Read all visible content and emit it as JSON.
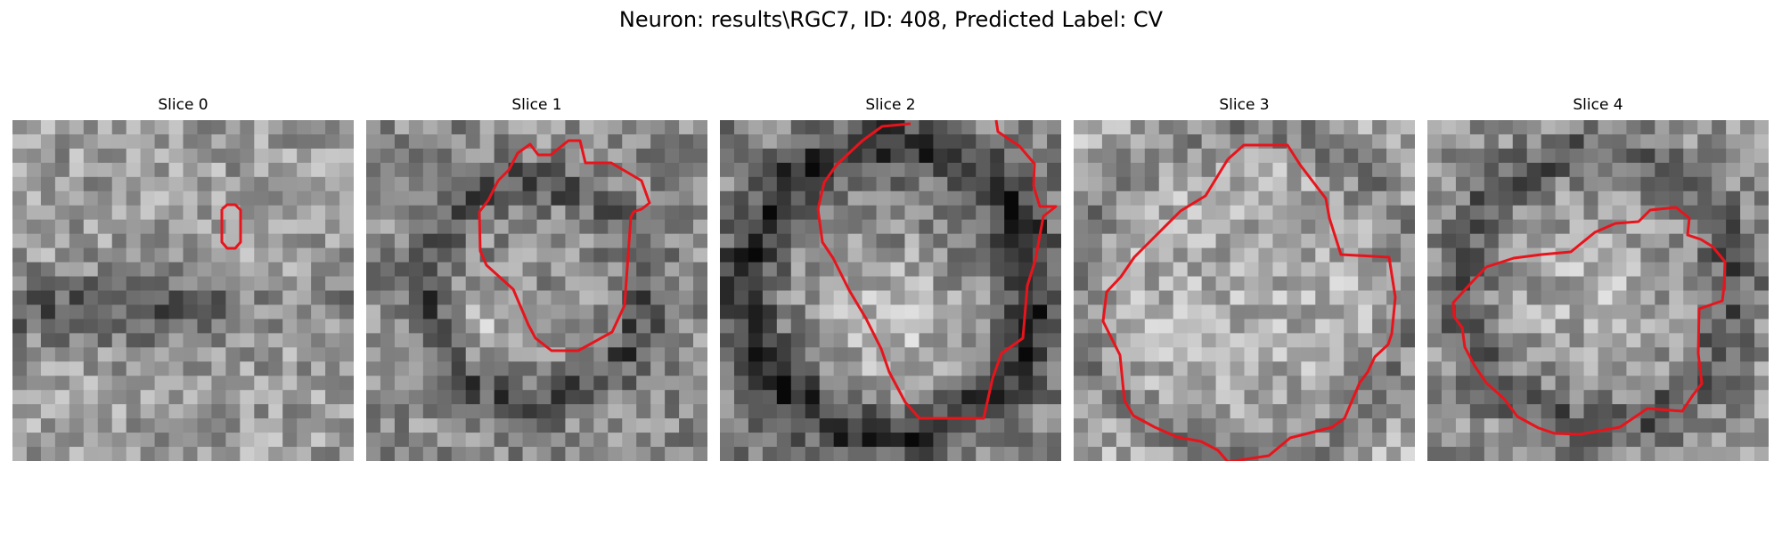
{
  "figure": {
    "title": "Neuron: results\\RGC7, ID: 408, Predicted Label: CV"
  },
  "panels": [
    {
      "title": "Slice 0",
      "pattern": "sparse"
    },
    {
      "title": "Slice 1",
      "pattern": "ring-small"
    },
    {
      "title": "Slice 2",
      "pattern": "ring-large"
    },
    {
      "title": "Slice 3",
      "pattern": "bright"
    },
    {
      "title": "Slice 4",
      "pattern": "ring-soft"
    }
  ],
  "colors": {
    "contour": "#e8141c",
    "background": "#ffffff"
  }
}
